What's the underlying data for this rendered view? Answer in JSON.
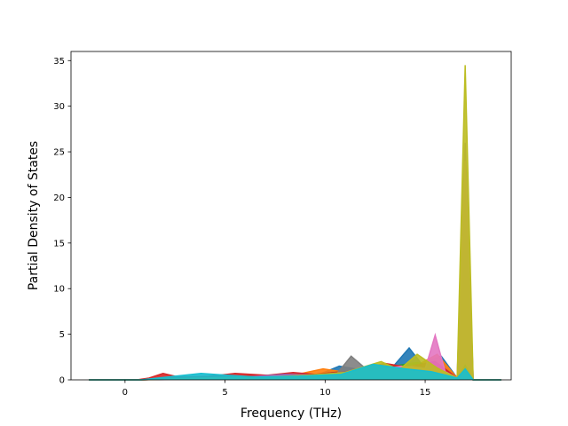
{
  "chart_data": {
    "type": "line",
    "title": "",
    "xlabel": "Frequency (THz)",
    "ylabel": "Partial Density of States",
    "xlim": [
      -2.7,
      19.3
    ],
    "ylim": [
      0,
      36
    ],
    "x_ticks": [
      0,
      5,
      10,
      15
    ],
    "y_ticks": [
      0,
      5,
      10,
      15,
      20,
      25,
      30,
      35
    ],
    "x_tick_labels": [
      "0",
      "5",
      "10",
      "15"
    ],
    "y_tick_labels": [
      "0",
      "5",
      "10",
      "15",
      "20",
      "25",
      "30",
      "35"
    ],
    "grid": false,
    "legend": "none",
    "fill_under_curves": true,
    "series": [
      {
        "color": "#1f77b4",
        "x": [
          -1.8,
          0.8,
          3.2,
          4.8,
          7.5,
          9.6,
          10.7,
          11.8,
          12.5,
          13.3,
          14.2,
          14.8,
          15.8,
          16.6,
          17.0,
          17.4,
          18.8
        ],
        "y": [
          0,
          0,
          0.3,
          0.2,
          0.3,
          0.5,
          1.5,
          1.1,
          1.6,
          1.2,
          3.5,
          1.8,
          2.6,
          0.2,
          2.0,
          0,
          0
        ]
      },
      {
        "color": "#ff7f0e",
        "x": [
          -1.8,
          0.8,
          2.6,
          4.4,
          6.3,
          8.6,
          9.9,
          10.8,
          12.1,
          13.2,
          14.6,
          15.6,
          16.6,
          17.0,
          17.4,
          18.8
        ],
        "y": [
          0,
          0,
          0.3,
          0.2,
          0.4,
          0.6,
          1.2,
          0.9,
          0.7,
          1.4,
          1.6,
          2.8,
          0.2,
          2.8,
          0,
          0
        ]
      },
      {
        "color": "#2ca02c",
        "x": [
          -1.8,
          0.8,
          3.0,
          5.1,
          7.0,
          9.2,
          10.4,
          11.6,
          13.4,
          14.6,
          15.2,
          16.6,
          17.0,
          17.4,
          18.8
        ],
        "y": [
          0,
          0,
          0.2,
          0.3,
          0.5,
          0.4,
          0.8,
          1.0,
          1.5,
          1.9,
          1.6,
          0.2,
          1.5,
          0,
          0
        ]
      },
      {
        "color": "#d62728",
        "x": [
          -1.8,
          0.6,
          1.2,
          1.9,
          2.7,
          4.2,
          5.5,
          7.1,
          8.4,
          9.5,
          11.4,
          13.0,
          14.1,
          15.5,
          16.6,
          17.0,
          17.4,
          18.8
        ],
        "y": [
          0,
          0,
          0.2,
          0.7,
          0.3,
          0.4,
          0.7,
          0.5,
          0.8,
          0.6,
          1.0,
          1.8,
          1.4,
          2.0,
          0.2,
          2.2,
          0,
          0
        ]
      },
      {
        "color": "#9467bd",
        "x": [
          -1.8,
          0.8,
          3.5,
          6.0,
          8.0,
          10.0,
          12.6,
          14.3,
          15.9,
          16.6,
          17.0,
          17.4,
          18.8
        ],
        "y": [
          0,
          0,
          0.2,
          0.3,
          0.6,
          0.5,
          0.8,
          1.5,
          1.0,
          0.2,
          26.0,
          0,
          0
        ]
      },
      {
        "color": "#8c564b",
        "x": [
          -1.8,
          0.8,
          3.9,
          6.6,
          8.9,
          11.2,
          13.7,
          15.0,
          16.6,
          17.0,
          17.4,
          18.8
        ],
        "y": [
          0,
          0,
          0.2,
          0.3,
          0.4,
          0.6,
          0.9,
          1.1,
          0.2,
          1.0,
          0,
          0
        ]
      },
      {
        "color": "#e377c2",
        "x": [
          -1.8,
          0.8,
          4.5,
          7.8,
          9.8,
          12.0,
          13.8,
          15.0,
          15.5,
          16.0,
          16.6,
          17.0,
          17.4,
          18.8
        ],
        "y": [
          0,
          0,
          0.2,
          0.4,
          0.3,
          0.8,
          1.5,
          1.2,
          4.9,
          0.9,
          0.2,
          24.0,
          0,
          0
        ]
      },
      {
        "color": "#7f7f7f",
        "x": [
          -1.8,
          0.8,
          4.0,
          7.2,
          9.3,
          10.6,
          11.3,
          12.2,
          13.5,
          14.9,
          16.6,
          17.0,
          17.4,
          18.8
        ],
        "y": [
          0,
          0,
          0.2,
          0.3,
          0.4,
          0.7,
          2.6,
          0.9,
          1.2,
          1.0,
          0.2,
          1.6,
          0,
          0
        ]
      },
      {
        "color": "#bcbd22",
        "x": [
          -1.8,
          0.8,
          3.6,
          7.0,
          9.0,
          11.0,
          12.8,
          13.7,
          14.6,
          15.6,
          16.6,
          17.0,
          17.4,
          18.8
        ],
        "y": [
          0,
          0,
          0.2,
          0.3,
          0.5,
          0.8,
          2.0,
          1.1,
          2.8,
          1.3,
          0.2,
          34.5,
          0,
          0
        ]
      },
      {
        "color": "#17becf",
        "x": [
          -1.8,
          0.8,
          3.8,
          6.5,
          8.7,
          10.8,
          12.4,
          14.0,
          15.3,
          16.6,
          17.0,
          17.4,
          18.8
        ],
        "y": [
          0,
          0,
          0.7,
          0.3,
          0.4,
          0.6,
          1.7,
          1.2,
          0.9,
          0.2,
          1.2,
          0,
          0
        ]
      }
    ]
  }
}
